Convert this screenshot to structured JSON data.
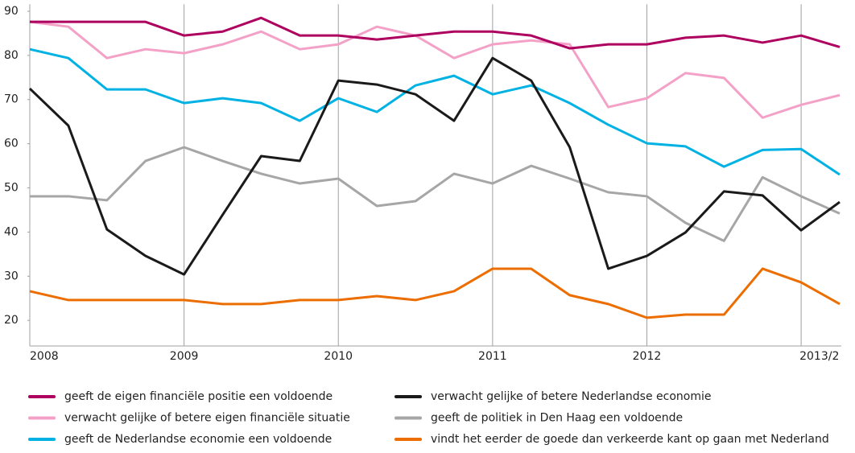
{
  "chart_data": {
    "type": "line",
    "categories": [
      "2008",
      null,
      null,
      null,
      "2009",
      null,
      null,
      null,
      "2010",
      null,
      null,
      null,
      "2011",
      null,
      null,
      null,
      "2012",
      null,
      null,
      null,
      "2013/2",
      null
    ],
    "ylim": [
      14.2,
      91.6
    ],
    "yticks": [
      20,
      30,
      40,
      50,
      60,
      70,
      80,
      90
    ],
    "grid": true,
    "series": [
      {
        "name": "geeft de eigen financiële positie een voldoende",
        "color": "#ad005f",
        "values": [
          87.6,
          87.6,
          87.6,
          87.6,
          84.5,
          85.4,
          88.5,
          84.5,
          84.5,
          83.6,
          84.5,
          85.4,
          85.4,
          84.5,
          81.6,
          82.5,
          82.5,
          84,
          84.5,
          82.9,
          84.5,
          81.9
        ]
      },
      {
        "name": "verwacht gelijke of betere eigen financiële situatie",
        "color": "#f4a1c8",
        "values": [
          87.6,
          86.5,
          79.4,
          81.4,
          80.5,
          82.5,
          85.4,
          81.4,
          82.5,
          86.5,
          84.5,
          79.4,
          82.5,
          83.4,
          82.5,
          68.3,
          70.3,
          76,
          74.9,
          65.9,
          68.8,
          71
        ]
      },
      {
        "name": "geeft de Nederlandse economie een voldoende",
        "color": "#00b2e3",
        "values": [
          81.4,
          79.4,
          72.3,
          72.3,
          69.2,
          70.3,
          69.2,
          65.2,
          70.3,
          67.2,
          73.2,
          75.4,
          71.2,
          73.2,
          69.2,
          64.3,
          60.1,
          59.4,
          54.8,
          58.6,
          58.8,
          53
        ]
      },
      {
        "name": "verwacht gelijke of betere Nederlandse economie",
        "color": "#1a1a1a",
        "values": [
          72.5,
          64.1,
          40.6,
          34.6,
          30.4,
          43.9,
          57.2,
          56.1,
          74.3,
          73.4,
          71.2,
          65.2,
          79.4,
          74.3,
          59.2,
          31.7,
          34.6,
          39.9,
          49.2,
          48.3,
          40.4,
          46.8
        ]
      },
      {
        "name": "geeft de politiek in Den Haag een voldoende",
        "color": "#a6a6a6",
        "values": [
          48.1,
          48.1,
          47.2,
          56.1,
          59.2,
          56.1,
          53.2,
          51,
          52.1,
          45.9,
          47,
          53.2,
          51,
          55,
          52.1,
          49,
          48.1,
          42.1,
          38,
          52.4,
          48.1,
          44.2
        ]
      },
      {
        "name": "vindt het eerder de goede dan verkeerde kant op gaan met Nederland",
        "color": "#ec6d00",
        "values": [
          26.6,
          24.6,
          24.6,
          24.6,
          24.6,
          23.7,
          23.7,
          24.6,
          24.6,
          25.5,
          24.6,
          26.6,
          31.7,
          31.7,
          25.7,
          23.7,
          20.6,
          21.3,
          21.3,
          31.7,
          28.6,
          23.7
        ]
      }
    ]
  }
}
